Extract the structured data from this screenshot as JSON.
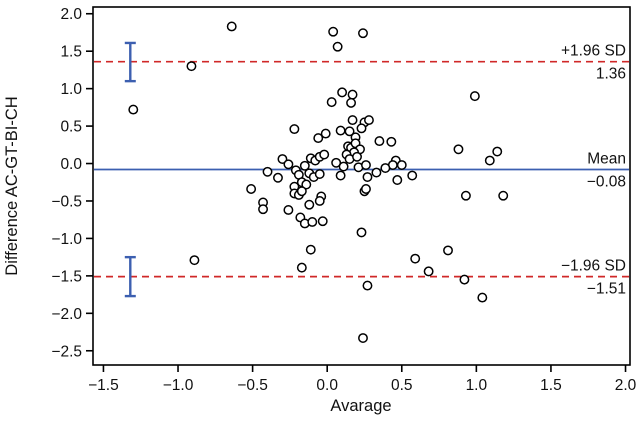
{
  "chart_data": {
    "type": "scatter",
    "title": "",
    "xlabel": "Avarage",
    "ylabel": "Difference AC-GT-BI-CH",
    "xlim": [
      -1.57,
      2.03
    ],
    "ylim": [
      -2.69,
      2.09
    ],
    "grid": false,
    "legend": "none",
    "marker": {
      "shape": "open-circle",
      "stroke": "#000000",
      "fill": "#ffffff",
      "radius_px": 4.2
    },
    "colors": {
      "mean_line": "#3c5fb0",
      "sd_line": "#d02828",
      "error_bar": "#3c5fb0",
      "frame": "#000000"
    },
    "x_ticks": [
      {
        "v": -1.5,
        "label": "−1.5"
      },
      {
        "v": -1.0,
        "label": "−1.0"
      },
      {
        "v": -0.5,
        "label": "−0.5"
      },
      {
        "v": 0.0,
        "label": "0.0"
      },
      {
        "v": 0.5,
        "label": "0.5"
      },
      {
        "v": 1.0,
        "label": "1.0"
      },
      {
        "v": 1.5,
        "label": "1.5"
      },
      {
        "v": 2.0,
        "label": "2.0"
      }
    ],
    "y_ticks": [
      {
        "v": 2.0,
        "label": "2.0"
      },
      {
        "v": 1.5,
        "label": "1.5"
      },
      {
        "v": 1.0,
        "label": "1.0"
      },
      {
        "v": 0.5,
        "label": "0.5"
      },
      {
        "v": 0.0,
        "label": "0.0"
      },
      {
        "v": -0.5,
        "label": "−0.5"
      },
      {
        "v": -1.0,
        "label": "−1.0"
      },
      {
        "v": -1.5,
        "label": "−1.5"
      },
      {
        "v": -2.0,
        "label": "−2.0"
      },
      {
        "v": -2.5,
        "label": "−2.5"
      }
    ],
    "reference_lines": [
      {
        "name": "upper-limit",
        "label": "+1.96 SD",
        "value": 1.36,
        "value_label": "1.36",
        "style": "dashed",
        "color": "#d02828"
      },
      {
        "name": "mean",
        "label": "Mean",
        "value": -0.08,
        "value_label": "−0.08",
        "style": "solid",
        "color": "#3c5fb0"
      },
      {
        "name": "lower-limit",
        "label": "−1.96 SD",
        "value": -1.51,
        "value_label": "−1.51",
        "style": "dashed",
        "color": "#d02828"
      }
    ],
    "error_bars": [
      {
        "x": -1.32,
        "low": 1.1,
        "high": 1.61,
        "color": "#3c5fb0"
      },
      {
        "x": -1.32,
        "low": -1.77,
        "high": -1.25,
        "color": "#3c5fb0"
      }
    ],
    "points": [
      [
        -1.3,
        0.72
      ],
      [
        -0.91,
        1.3
      ],
      [
        -0.64,
        1.83
      ],
      [
        -0.89,
        -1.29
      ],
      [
        0.04,
        1.76
      ],
      [
        0.24,
        1.74
      ],
      [
        0.07,
        1.56
      ],
      [
        0.1,
        0.95
      ],
      [
        0.17,
        0.92
      ],
      [
        0.03,
        0.82
      ],
      [
        0.16,
        0.81
      ],
      [
        0.99,
        0.9
      ],
      [
        0.88,
        0.19
      ],
      [
        1.09,
        0.04
      ],
      [
        1.14,
        0.16
      ],
      [
        0.93,
        -0.43
      ],
      [
        1.18,
        -0.43
      ],
      [
        0.27,
        -1.63
      ],
      [
        0.24,
        -2.33
      ],
      [
        -0.11,
        -1.15
      ],
      [
        -0.17,
        -1.39
      ],
      [
        0.23,
        -0.92
      ],
      [
        0.59,
        -1.27
      ],
      [
        0.81,
        -1.16
      ],
      [
        0.68,
        -1.44
      ],
      [
        0.92,
        -1.55
      ],
      [
        1.04,
        -1.79
      ],
      [
        -0.22,
        0.46
      ],
      [
        -0.06,
        0.34
      ],
      [
        -0.01,
        0.4
      ],
      [
        0.17,
        0.58
      ],
      [
        0.25,
        0.55
      ],
      [
        0.28,
        0.58
      ],
      [
        0.09,
        0.44
      ],
      [
        0.15,
        0.43
      ],
      [
        0.23,
        0.47
      ],
      [
        0.19,
        0.35
      ],
      [
        0.35,
        0.3
      ],
      [
        0.43,
        0.29
      ],
      [
        0.14,
        0.23
      ],
      [
        0.16,
        0.21
      ],
      [
        0.19,
        0.27
      ],
      [
        0.22,
        0.19
      ],
      [
        0.18,
        0.15
      ],
      [
        0.13,
        0.12
      ],
      [
        0.15,
        0.06
      ],
      [
        0.2,
        0.09
      ],
      [
        0.06,
        0.01
      ],
      [
        0.11,
        -0.04
      ],
      [
        0.21,
        -0.05
      ],
      [
        0.26,
        -0.02
      ],
      [
        0.46,
        0.04
      ],
      [
        0.5,
        -0.02
      ],
      [
        0.44,
        -0.02
      ],
      [
        0.39,
        -0.06
      ],
      [
        0.33,
        -0.12
      ],
      [
        0.09,
        -0.16
      ],
      [
        0.27,
        -0.18
      ],
      [
        0.47,
        -0.22
      ],
      [
        0.57,
        -0.16
      ],
      [
        -0.3,
        0.06
      ],
      [
        -0.26,
        -0.01
      ],
      [
        -0.4,
        -0.11
      ],
      [
        -0.33,
        -0.19
      ],
      [
        -0.21,
        -0.09
      ],
      [
        -0.19,
        -0.15
      ],
      [
        -0.15,
        -0.03
      ],
      [
        -0.11,
        0.07
      ],
      [
        -0.08,
        0.04
      ],
      [
        -0.05,
        0.09
      ],
      [
        -0.02,
        0.12
      ],
      [
        -0.12,
        -0.13
      ],
      [
        -0.09,
        -0.18
      ],
      [
        -0.05,
        -0.14
      ],
      [
        -0.17,
        -0.25
      ],
      [
        -0.14,
        -0.28
      ],
      [
        -0.22,
        -0.31
      ],
      [
        -0.51,
        -0.34
      ],
      [
        -0.22,
        -0.4
      ],
      [
        -0.19,
        -0.42
      ],
      [
        -0.04,
        -0.44
      ],
      [
        -0.43,
        -0.52
      ],
      [
        -0.43,
        -0.61
      ],
      [
        -0.26,
        -0.62
      ],
      [
        -0.17,
        -0.37
      ],
      [
        -0.12,
        -0.55
      ],
      [
        -0.05,
        -0.5
      ],
      [
        -0.18,
        -0.72
      ],
      [
        -0.15,
        -0.8
      ],
      [
        -0.1,
        -0.78
      ],
      [
        -0.03,
        -0.77
      ],
      [
        0.25,
        -0.37
      ],
      [
        0.26,
        -0.34
      ]
    ]
  }
}
